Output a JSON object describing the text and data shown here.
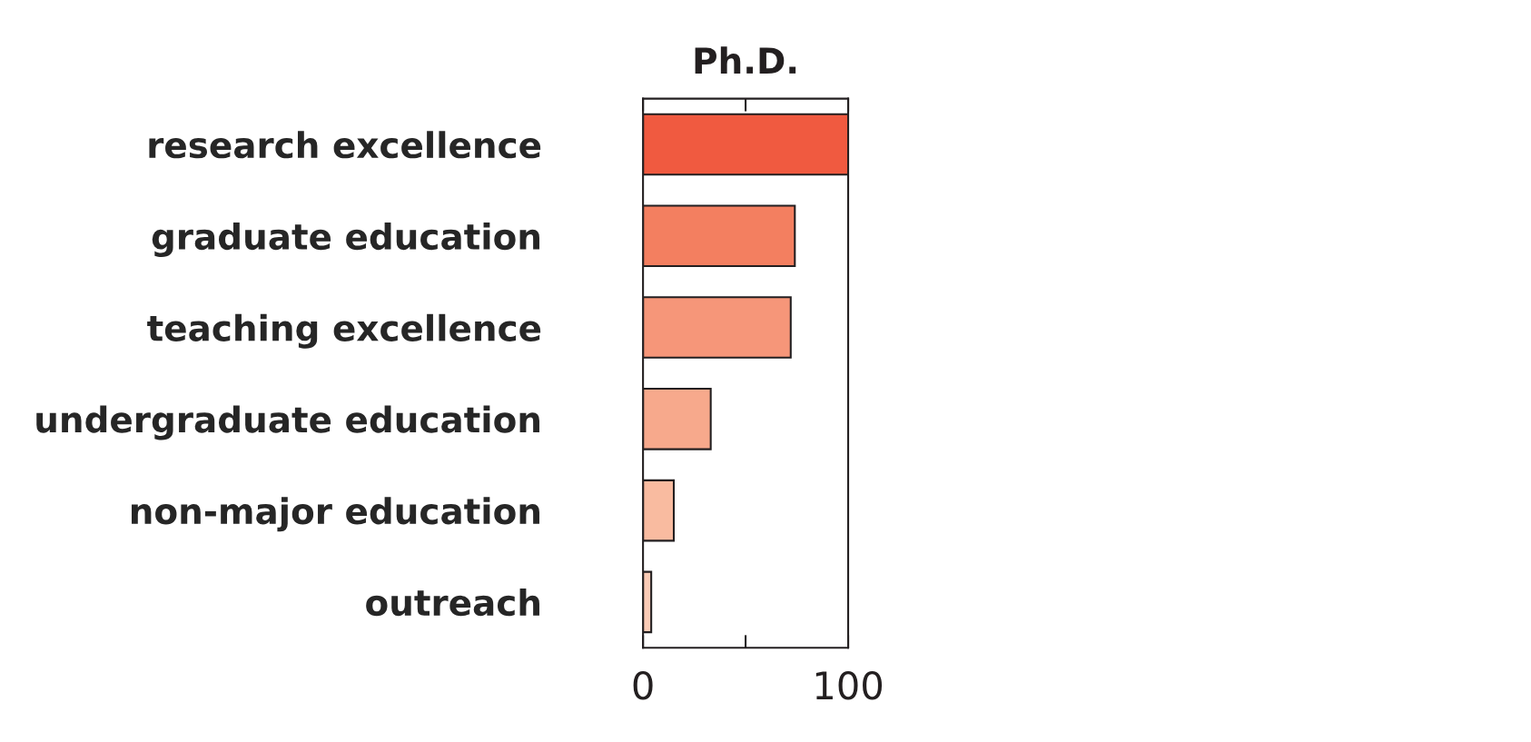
{
  "chart_data": {
    "type": "bar",
    "orientation": "horizontal",
    "title": "Ph.D.",
    "categories": [
      "research excellence",
      "graduate education",
      "teaching excellence",
      "undergraduate education",
      "non-major education",
      "outreach"
    ],
    "values": [
      100,
      74,
      72,
      33,
      15,
      4
    ],
    "colors": [
      "#f05a40",
      "#f37f60",
      "#f69679",
      "#f7a98c",
      "#f9bba0",
      "#fbcbb6"
    ],
    "xlim": [
      0,
      100
    ],
    "xticks": [
      0,
      {
        "value": 50,
        "label": null
      },
      100
    ],
    "grid": false
  }
}
